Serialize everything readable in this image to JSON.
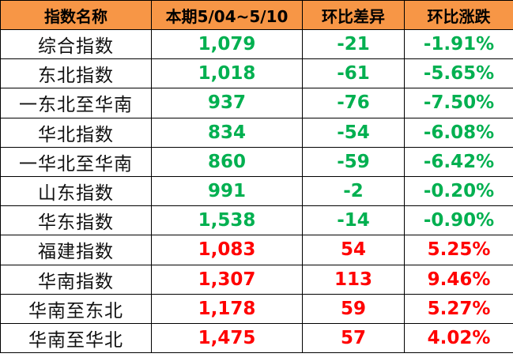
{
  "headers": [
    "指数名称",
    "本期5/04~5/10",
    "环比差异",
    "环比涨跌"
  ],
  "colors": {
    "header_bg": "#F79646",
    "up": "#FF0000",
    "down": "#00B050"
  },
  "rows": [
    {
      "name": "综合指数",
      "value": "1,079",
      "diff": "-21",
      "pct": "-1.91%",
      "trend": "down"
    },
    {
      "name": "东北指数",
      "value": "1,018",
      "diff": "-61",
      "pct": "-5.65%",
      "trend": "down"
    },
    {
      "name": "一东北至华南",
      "value": "937",
      "diff": "-76",
      "pct": "-7.50%",
      "trend": "down"
    },
    {
      "name": "华北指数",
      "value": "834",
      "diff": "-54",
      "pct": "-6.08%",
      "trend": "down"
    },
    {
      "name": "一华北至华南",
      "value": "860",
      "diff": "-59",
      "pct": "-6.42%",
      "trend": "down"
    },
    {
      "name": "山东指数",
      "value": "991",
      "diff": "-2",
      "pct": "-0.20%",
      "trend": "down"
    },
    {
      "name": "华东指数",
      "value": "1,538",
      "diff": "-14",
      "pct": "-0.90%",
      "trend": "down"
    },
    {
      "name": "福建指数",
      "value": "1,083",
      "diff": "54",
      "pct": "5.25%",
      "trend": "up"
    },
    {
      "name": "华南指数",
      "value": "1,307",
      "diff": "113",
      "pct": "9.46%",
      "trend": "up"
    },
    {
      "name": "华南至东北",
      "value": "1,178",
      "diff": "59",
      "pct": "5.27%",
      "trend": "up"
    },
    {
      "name": "华南至华北",
      "value": "1,475",
      "diff": "57",
      "pct": "4.02%",
      "trend": "up"
    }
  ]
}
